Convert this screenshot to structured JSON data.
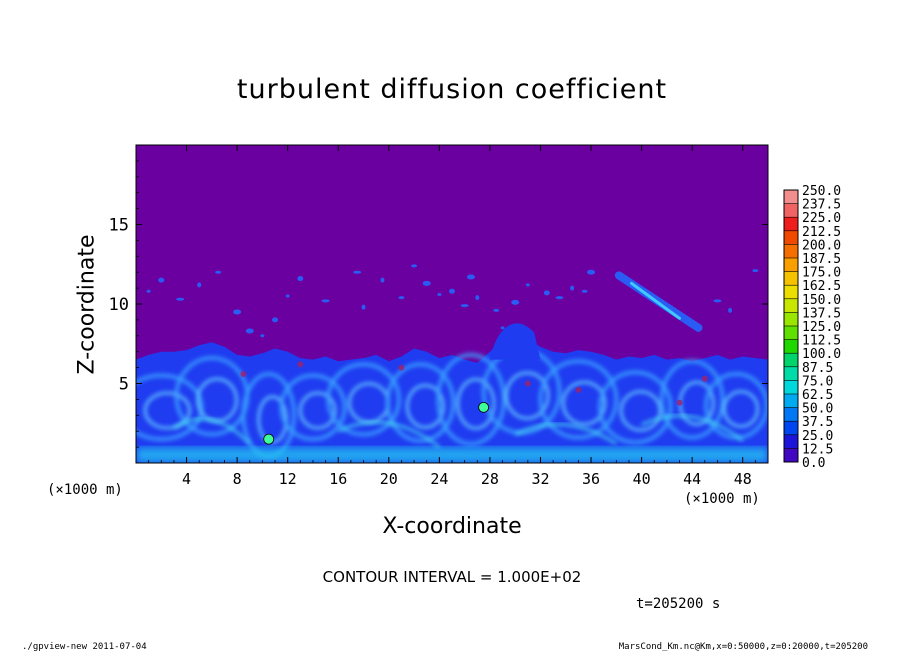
{
  "chart_data": {
    "type": "heatmap",
    "title": "turbulent diffusion coefficient",
    "xlabel": "X-coordinate",
    "ylabel": "Z-coordinate",
    "x_unit_label": "(×1000 m)",
    "xlim": [
      0,
      50
    ],
    "ylim": [
      0,
      20
    ],
    "xticks": [
      "4",
      "8",
      "12",
      "16",
      "20",
      "24",
      "28",
      "32",
      "36",
      "40",
      "44",
      "48"
    ],
    "yticks": [
      "5",
      "10",
      "15"
    ],
    "colorbar_labels": [
      "250.0",
      "237.5",
      "225.0",
      "212.5",
      "200.0",
      "187.5",
      "175.0",
      "162.5",
      "150.0",
      "137.5",
      "125.0",
      "112.5",
      "100.0",
      "87.5",
      "75.0",
      "62.5",
      "50.0",
      "37.5",
      "25.0",
      "12.5",
      "0.0"
    ],
    "colorbar_colors": [
      "#f38e8e",
      "#f06464",
      "#ee1e1e",
      "#f04a00",
      "#f56e00",
      "#f9a000",
      "#f6c200",
      "#ecdf00",
      "#c9e600",
      "#9be600",
      "#5fe000",
      "#1fd800",
      "#00d46a",
      "#00dca8",
      "#00d8dc",
      "#00aaf0",
      "#0078f5",
      "#0046f0",
      "#1c14d8",
      "#4008c0",
      "#6a00a0"
    ],
    "background_color": "#6a00a0",
    "contour_interval": "CONTOUR INTERVAL = 1.000E+02",
    "time_label": "t=205200 s",
    "bl_profile": [
      [
        0,
        6.5
      ],
      [
        1,
        6.8
      ],
      [
        2,
        7.0
      ],
      [
        3,
        7.0
      ],
      [
        4,
        7.1
      ],
      [
        5,
        7.4
      ],
      [
        6,
        7.6
      ],
      [
        7,
        7.3
      ],
      [
        8,
        6.8
      ],
      [
        9,
        6.7
      ],
      [
        10,
        6.9
      ],
      [
        11,
        7.2
      ],
      [
        12,
        7.0
      ],
      [
        13,
        6.6
      ],
      [
        14,
        6.5
      ],
      [
        15,
        6.7
      ],
      [
        16,
        6.4
      ],
      [
        17,
        6.5
      ],
      [
        18,
        6.6
      ],
      [
        19,
        6.8
      ],
      [
        20,
        6.4
      ],
      [
        21,
        6.7
      ],
      [
        22,
        7.2
      ],
      [
        23,
        7.0
      ],
      [
        24,
        6.6
      ],
      [
        25,
        6.8
      ],
      [
        26,
        6.5
      ],
      [
        27,
        6.3
      ],
      [
        28,
        7.0
      ],
      [
        29,
        7.8
      ],
      [
        30,
        8.3
      ],
      [
        31,
        7.8
      ],
      [
        32,
        7.3
      ],
      [
        33,
        7.0
      ],
      [
        34,
        6.9
      ],
      [
        35,
        7.1
      ],
      [
        36,
        7.0
      ],
      [
        37,
        6.8
      ],
      [
        38,
        6.5
      ],
      [
        39,
        6.7
      ],
      [
        40,
        6.6
      ],
      [
        41,
        6.8
      ],
      [
        42,
        6.5
      ],
      [
        43,
        6.6
      ],
      [
        44,
        6.4
      ],
      [
        45,
        6.6
      ],
      [
        46,
        6.8
      ],
      [
        47,
        6.5
      ],
      [
        48,
        6.7
      ],
      [
        49,
        6.6
      ],
      [
        50,
        6.5
      ]
    ],
    "features": [
      {
        "name": "plume",
        "x": [
          38.2,
          44.5
        ],
        "y": [
          11.8,
          8.5
        ],
        "value": 60
      },
      {
        "name": "eddy",
        "x": [
          27.5
        ],
        "y": [
          3.5
        ],
        "value": 100
      },
      {
        "name": "eddy",
        "x": [
          10.5
        ],
        "y": [
          1.5
        ],
        "value": 90
      }
    ]
  },
  "footer": {
    "left": "./gpview-new  2011-07-04",
    "right": "MarsCond_Km.nc@Km,x=0:50000,z=0:20000,t=205200"
  }
}
